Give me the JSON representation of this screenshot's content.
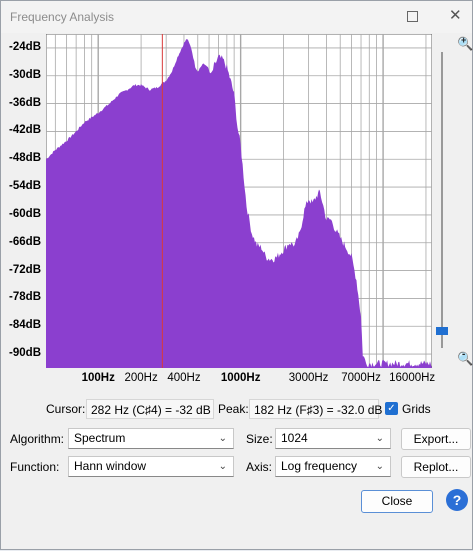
{
  "window": {
    "title": "Frequency Analysis"
  },
  "y_ticks": [
    "-24dB",
    "-30dB",
    "-36dB",
    "-42dB",
    "-48dB",
    "-54dB",
    "-60dB",
    "-66dB",
    "-72dB",
    "-78dB",
    "-84dB",
    "-90dB"
  ],
  "x_ticks": [
    {
      "label": "100Hz",
      "bold": true,
      "freq": 100
    },
    {
      "label": "200Hz",
      "bold": false,
      "freq": 200
    },
    {
      "label": "400Hz",
      "bold": false,
      "freq": 400
    },
    {
      "label": "1000Hz",
      "bold": true,
      "freq": 1000
    },
    {
      "label": "3000Hz",
      "bold": false,
      "freq": 3000
    },
    {
      "label": "7000Hz",
      "bold": false,
      "freq": 7000
    },
    {
      "label": "16000Hz",
      "bold": false,
      "freq": 16000
    }
  ],
  "chart_data": {
    "type": "area",
    "x_scale": "log",
    "xlim": [
      43,
      22050
    ],
    "ylim": [
      -93,
      -21
    ],
    "grid": true,
    "fill_color": "#8b3fcf",
    "grid_color": "#a8a8a8",
    "cursor_freq": 282,
    "cursor_color": "#d83a3a",
    "x": [
      43,
      50,
      60,
      70,
      80,
      100,
      120,
      140,
      160,
      180,
      200,
      230,
      260,
      300,
      330,
      360,
      400,
      420,
      450,
      480,
      500,
      540,
      580,
      620,
      650,
      700,
      750,
      800,
      850,
      900,
      950,
      1000,
      1100,
      1200,
      1300,
      1400,
      1500,
      1600,
      1700,
      1800,
      2000,
      2200,
      2400,
      2600,
      2800,
      3000,
      3200,
      3400,
      3600,
      3800,
      4000,
      4300,
      4600,
      5000,
      5500,
      6000,
      6500,
      7000,
      7200,
      7600,
      8000,
      9000,
      10000,
      12000,
      16000,
      22050
    ],
    "y": [
      -48,
      -46,
      -44,
      -42,
      -40,
      -38,
      -36,
      -34,
      -33,
      -32,
      -32,
      -33,
      -32.5,
      -31,
      -29,
      -26,
      -23,
      -22,
      -24,
      -28,
      -29,
      -27.5,
      -27.8,
      -30,
      -28,
      -26,
      -26.5,
      -28.2,
      -31,
      -34,
      -41,
      -45,
      -58,
      -64,
      -66.5,
      -67,
      -69,
      -69.5,
      -69.5,
      -69,
      -67.5,
      -66,
      -66.5,
      -64,
      -59,
      -56.5,
      -57.5,
      -56,
      -55,
      -58,
      -61,
      -61,
      -63,
      -65,
      -67,
      -69,
      -74,
      -82,
      -90,
      -92,
      -92,
      -92,
      -92,
      -92,
      -92,
      -92
    ]
  },
  "cursor": {
    "label": "Cursor:",
    "value": "282 Hz (C♯4) = -32 dB"
  },
  "peak": {
    "label": "Peak:",
    "value": "182 Hz (F♯3) = -32.0 dB"
  },
  "grids": {
    "label": "Grids",
    "checked": true
  },
  "algorithm": {
    "label": "Algorithm:",
    "value": "Spectrum"
  },
  "size": {
    "label": "Size:",
    "value": "1024"
  },
  "function": {
    "label": "Function:",
    "value": "Hann window"
  },
  "axis": {
    "label": "Axis:",
    "value": "Log frequency"
  },
  "buttons": {
    "export": "Export...",
    "replot": "Replot...",
    "close": "Close",
    "help": "?"
  },
  "icons": {
    "zoom_in": "zoom-in-icon",
    "zoom_out": "zoom-out-icon",
    "maximize": "maximize-icon",
    "close": "close-icon",
    "chevron": "chevron-down-icon",
    "check": "check-icon"
  }
}
